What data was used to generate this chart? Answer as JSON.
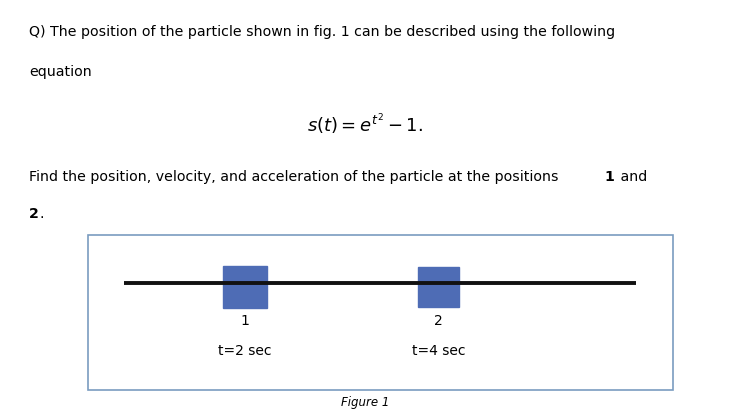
{
  "bg_color": "#ffffff",
  "text_color": "#000000",
  "question_line1": "Q) The position of the particle shown in fig. 1 can be described using the following",
  "question_line2": "equation",
  "equation": "$s(t) = e^{t^2} - 1.$",
  "find_text": "Find the position, velocity, and acceleration of the particle at the positions ",
  "find_bold": "1",
  "find_and": " and",
  "find_newline_bold": "2",
  "find_period": ".",
  "figure_caption": "Figure 1",
  "box_color": "#4e6cb5",
  "line_color": "#111111",
  "border_color": "#7a9cc0",
  "label1": "1",
  "label2": "2",
  "time1": "t=2 sec",
  "time2": "t=4 sec",
  "fig_width": 7.31,
  "fig_height": 4.19,
  "dpi": 100
}
